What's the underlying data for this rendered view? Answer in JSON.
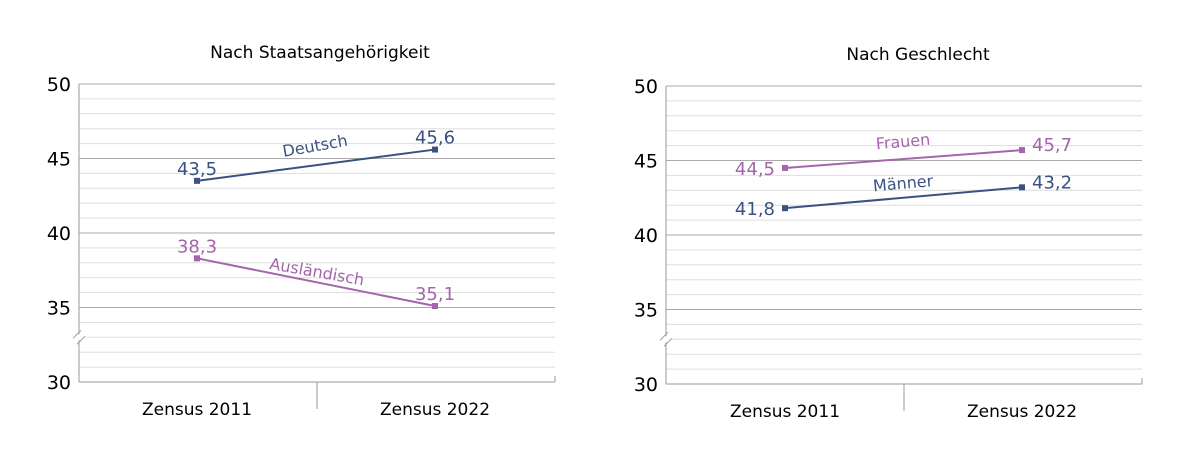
{
  "colors": {
    "series_blue": "#3a5283",
    "series_purple": "#a466aa",
    "grid_major": "#aaaaaa",
    "grid_minor": "#dddddd",
    "axis": "#999999",
    "text": "#000000"
  },
  "chart_data": [
    {
      "type": "line",
      "title": "Nach Staatsangehörigkeit",
      "categories": [
        "Zensus 2011",
        "Zensus 2022"
      ],
      "ylim": [
        30,
        50
      ],
      "yticks": [
        "30",
        "35",
        "40",
        "45",
        "50"
      ],
      "axis_break": true,
      "grid": true,
      "series": [
        {
          "name": "Deutsch",
          "values": [
            43.5,
            45.6
          ],
          "labels": [
            "43,5",
            "45,6"
          ],
          "color": "#3a5283"
        },
        {
          "name": "Ausländisch",
          "values": [
            38.3,
            35.1
          ],
          "labels": [
            "38,3",
            "35,1"
          ],
          "color": "#a466aa"
        }
      ]
    },
    {
      "type": "line",
      "title": "Nach Geschlecht",
      "categories": [
        "Zensus 2011",
        "Zensus 2022"
      ],
      "ylim": [
        30,
        50
      ],
      "yticks": [
        "30",
        "35",
        "40",
        "45",
        "50"
      ],
      "axis_break": true,
      "grid": true,
      "series": [
        {
          "name": "Frauen",
          "values": [
            44.5,
            45.7
          ],
          "labels": [
            "44,5",
            "45,7"
          ],
          "color": "#a466aa"
        },
        {
          "name": "Männer",
          "values": [
            41.8,
            43.2
          ],
          "labels": [
            "41,8",
            "43,2"
          ],
          "color": "#3a5283"
        }
      ]
    }
  ]
}
